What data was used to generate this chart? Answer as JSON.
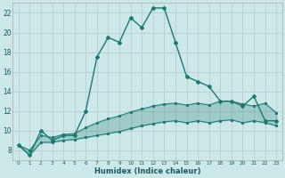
{
  "xlabel": "Humidex (Indice chaleur)",
  "bg_color": "#cce8e8",
  "grid_color": "#b0d0d0",
  "line_color": "#1a7a6e",
  "x": [
    0,
    1,
    2,
    3,
    4,
    5,
    6,
    7,
    8,
    9,
    10,
    11,
    12,
    13,
    14,
    15,
    16,
    17,
    18,
    19,
    20,
    21,
    22,
    23
  ],
  "y_main": [
    8.5,
    7.5,
    10.0,
    9.0,
    9.5,
    9.5,
    12.0,
    17.5,
    19.5,
    19.0,
    21.5,
    20.5,
    22.5,
    22.5,
    19.0,
    15.5,
    15.0,
    14.5,
    13.0,
    13.0,
    12.5,
    13.5,
    11.0,
    11.0
  ],
  "y_upper": [
    8.5,
    8.0,
    9.5,
    9.3,
    9.6,
    9.7,
    10.3,
    10.8,
    11.2,
    11.5,
    11.9,
    12.2,
    12.5,
    12.7,
    12.8,
    12.6,
    12.8,
    12.6,
    13.0,
    13.0,
    12.7,
    12.5,
    12.8,
    11.8
  ],
  "y_lower": [
    8.5,
    7.5,
    8.8,
    8.8,
    9.0,
    9.1,
    9.3,
    9.5,
    9.7,
    9.9,
    10.2,
    10.5,
    10.7,
    10.9,
    11.0,
    10.8,
    11.0,
    10.8,
    11.0,
    11.1,
    10.8,
    11.0,
    10.8,
    10.5
  ],
  "ylim": [
    7,
    23
  ],
  "xlim": [
    -0.5,
    23.5
  ],
  "yticks": [
    8,
    10,
    12,
    14,
    16,
    18,
    20,
    22
  ],
  "xtick_labels": [
    "0",
    "1",
    "2",
    "3",
    "4",
    "5",
    "6",
    "7",
    "8",
    "9",
    "10",
    "11",
    "12",
    "13",
    "14",
    "15",
    "16",
    "17",
    "18",
    "19",
    "20",
    "21",
    "22",
    "23"
  ]
}
